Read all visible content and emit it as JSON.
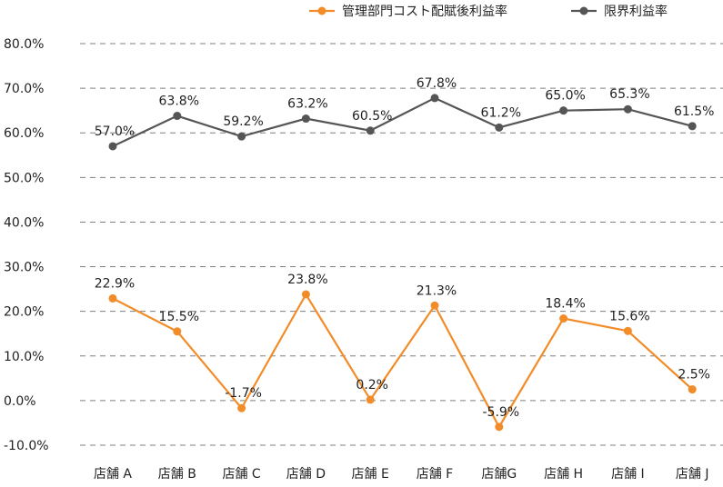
{
  "chart_data": {
    "type": "line",
    "categories": [
      "店舗 A",
      "店舗 B",
      "店舗 C",
      "店舗 D",
      "店舗 E",
      "店舗 F",
      "店舗G",
      "店舗 H",
      "店舗 I",
      "店舗 J"
    ],
    "series": [
      {
        "name": "管理部門コスト配賦後利益率",
        "color": "#F28C28",
        "values": [
          22.9,
          15.5,
          -1.7,
          23.8,
          0.2,
          21.3,
          -5.9,
          18.4,
          15.6,
          2.5
        ],
        "labels": [
          "22.9%",
          "15.5%",
          "-1.7%",
          "23.8%",
          "0.2%",
          "21.3%",
          "-5.9%",
          "18.4%",
          "15.6%",
          "2.5%"
        ]
      },
      {
        "name": "限界利益率",
        "color": "#555555",
        "values": [
          57.0,
          63.8,
          59.2,
          63.2,
          60.5,
          67.8,
          61.2,
          65.0,
          65.3,
          61.5
        ],
        "labels": [
          "57.0%",
          "63.8%",
          "59.2%",
          "63.2%",
          "60.5%",
          "67.8%",
          "61.2%",
          "65.0%",
          "65.3%",
          "61.5%"
        ]
      }
    ],
    "y_ticks": [
      "80.0%",
      "70.0%",
      "60.0%",
      "50.0%",
      "40.0%",
      "30.0%",
      "20.0%",
      "10.0%",
      "0.0%",
      "-10.0%"
    ],
    "ylim": [
      -10,
      80
    ],
    "grid": "horizontal dashed",
    "legend": "top-right"
  }
}
